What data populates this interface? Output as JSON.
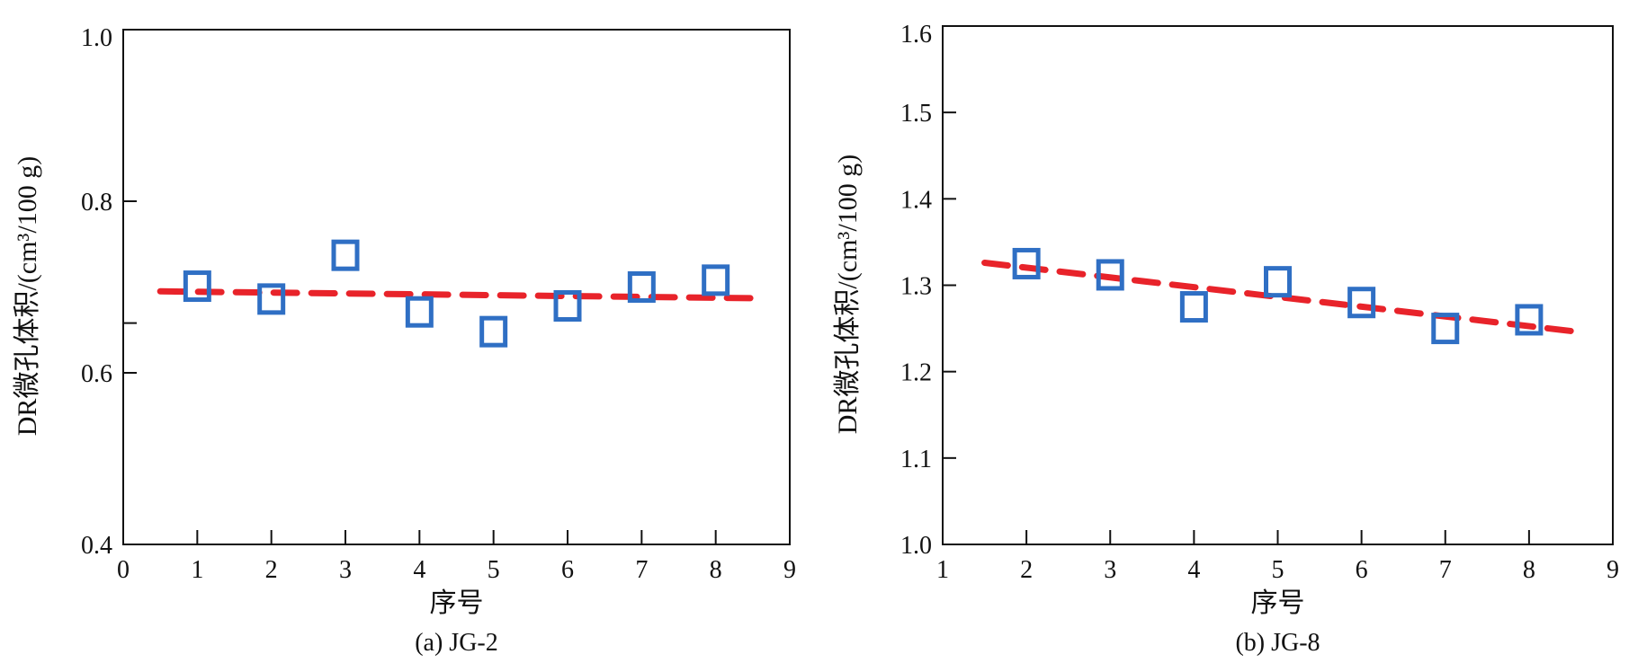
{
  "chart_data": [
    {
      "type": "scatter",
      "caption": "(a) JG-2",
      "xlabel": "序号",
      "ylabel": "DR微孔体积/(cm³/100 g)",
      "xlim": [
        0,
        9
      ],
      "ylim": [
        0.4,
        1.0
      ],
      "xticks": [
        "0",
        "1",
        "2",
        "3",
        "4",
        "5",
        "6",
        "7",
        "8",
        "9"
      ],
      "yticks": [
        "0.4",
        "0.6",
        "0.8",
        "1.0"
      ],
      "series": [
        {
          "name": "DR微孔体积",
          "marker": "square",
          "color": "#2f6fc4",
          "x": [
            1,
            2,
            3,
            4,
            5,
            6,
            7,
            8
          ],
          "y": [
            0.701,
            0.686,
            0.737,
            0.671,
            0.648,
            0.678,
            0.7,
            0.708
          ]
        },
        {
          "name": "trend",
          "style": "dashed",
          "color": "#e8232a",
          "x": [
            0.5,
            8.5
          ],
          "y": [
            0.695,
            0.687
          ]
        }
      ]
    },
    {
      "type": "scatter",
      "caption": "(b) JG-8",
      "xlabel": "序号",
      "ylabel": "DR微孔体积/(cm³/100 g)",
      "xlim": [
        1,
        9
      ],
      "ylim": [
        1.0,
        1.6
      ],
      "xticks": [
        "1",
        "2",
        "3",
        "4",
        "5",
        "6",
        "7",
        "8",
        "9"
      ],
      "yticks": [
        "1.0",
        "1.1",
        "1.2",
        "1.3",
        "1.4",
        "1.5",
        "1.6"
      ],
      "series": [
        {
          "name": "DR微孔体积",
          "marker": "square",
          "color": "#2f6fc4",
          "x": [
            2,
            3,
            4,
            5,
            6,
            7,
            8
          ],
          "y": [
            1.325,
            1.312,
            1.275,
            1.304,
            1.28,
            1.25,
            1.26
          ]
        },
        {
          "name": "trend",
          "style": "dashed",
          "color": "#e8232a",
          "x": [
            1.5,
            8.5
          ],
          "y": [
            1.326,
            1.247
          ]
        }
      ]
    }
  ]
}
